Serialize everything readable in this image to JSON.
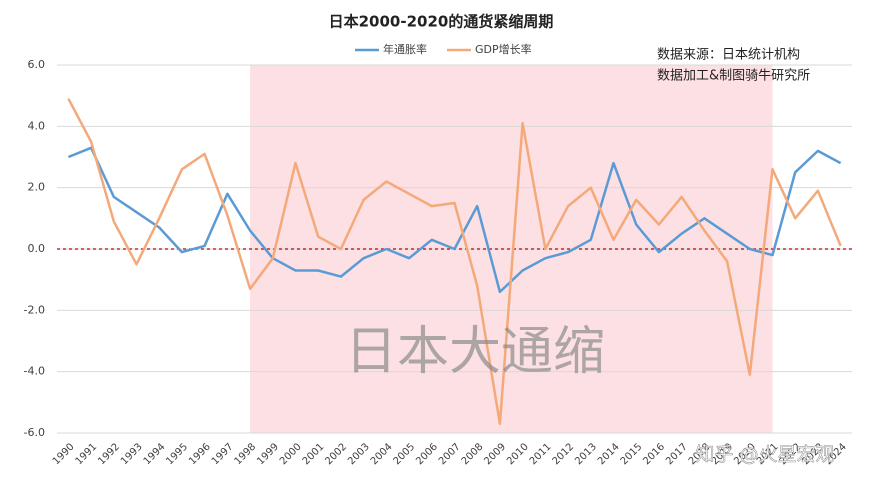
{
  "chart_data": {
    "type": "line",
    "title": "日本2000-2020的通货紧缩周期",
    "annotations": [
      "数据来源：日本统计机构",
      "数据加工&制图骑牛研究所"
    ],
    "watermark": "日本大通缩",
    "site_watermark": "知乎 @火星宏观",
    "categories": [
      "1990",
      "1991",
      "1992",
      "1993",
      "1994",
      "1995",
      "1996",
      "1997",
      "1998",
      "1999",
      "2000",
      "2001",
      "2002",
      "2003",
      "2004",
      "2005",
      "2006",
      "2007",
      "2008",
      "2009",
      "2010",
      "2011",
      "2012",
      "2013",
      "2014",
      "2015",
      "2016",
      "2017",
      "2018",
      "2019",
      "2020",
      "2021",
      "2022",
      "2023",
      "2024"
    ],
    "series": [
      {
        "name": "年通胀率",
        "color": "#5b9bd5",
        "values": [
          3.0,
          3.3,
          1.7,
          1.2,
          0.7,
          -0.1,
          0.1,
          1.8,
          0.6,
          -0.3,
          -0.7,
          -0.7,
          -0.9,
          -0.3,
          0.0,
          -0.3,
          0.3,
          0.0,
          1.4,
          -1.4,
          -0.7,
          -0.3,
          -0.1,
          0.3,
          2.8,
          0.8,
          -0.1,
          0.5,
          1.0,
          0.5,
          0.0,
          -0.2,
          2.5,
          3.2,
          2.8
        ]
      },
      {
        "name": "GDP增长率",
        "color": "#f4a97a",
        "values": [
          4.9,
          3.5,
          0.9,
          -0.5,
          1.0,
          2.6,
          3.1,
          1.1,
          -1.3,
          -0.3,
          2.8,
          0.4,
          0.0,
          1.6,
          2.2,
          1.8,
          1.4,
          1.5,
          -1.2,
          -5.7,
          4.1,
          0.0,
          1.4,
          2.0,
          0.3,
          1.6,
          0.8,
          1.7,
          0.6,
          -0.4,
          -4.1,
          2.6,
          1.0,
          1.9,
          0.1
        ]
      }
    ],
    "ylim": [
      -6,
      6
    ],
    "yticks": [
      {
        "value": -6,
        "label": "-6.0"
      },
      {
        "value": -4,
        "label": "-4.0"
      },
      {
        "value": -2,
        "label": "-2.0"
      },
      {
        "value": 0,
        "label": "0.0"
      },
      {
        "value": 2,
        "label": "2.0"
      },
      {
        "value": 4,
        "label": "4.0"
      },
      {
        "value": 6,
        "label": "6.0"
      }
    ],
    "grid": true,
    "reference_line": {
      "value": 0,
      "color": "#c00000"
    },
    "highlight_range": {
      "from": "1998",
      "to": "2021",
      "color": "#fde0e3"
    },
    "legend": "top"
  }
}
